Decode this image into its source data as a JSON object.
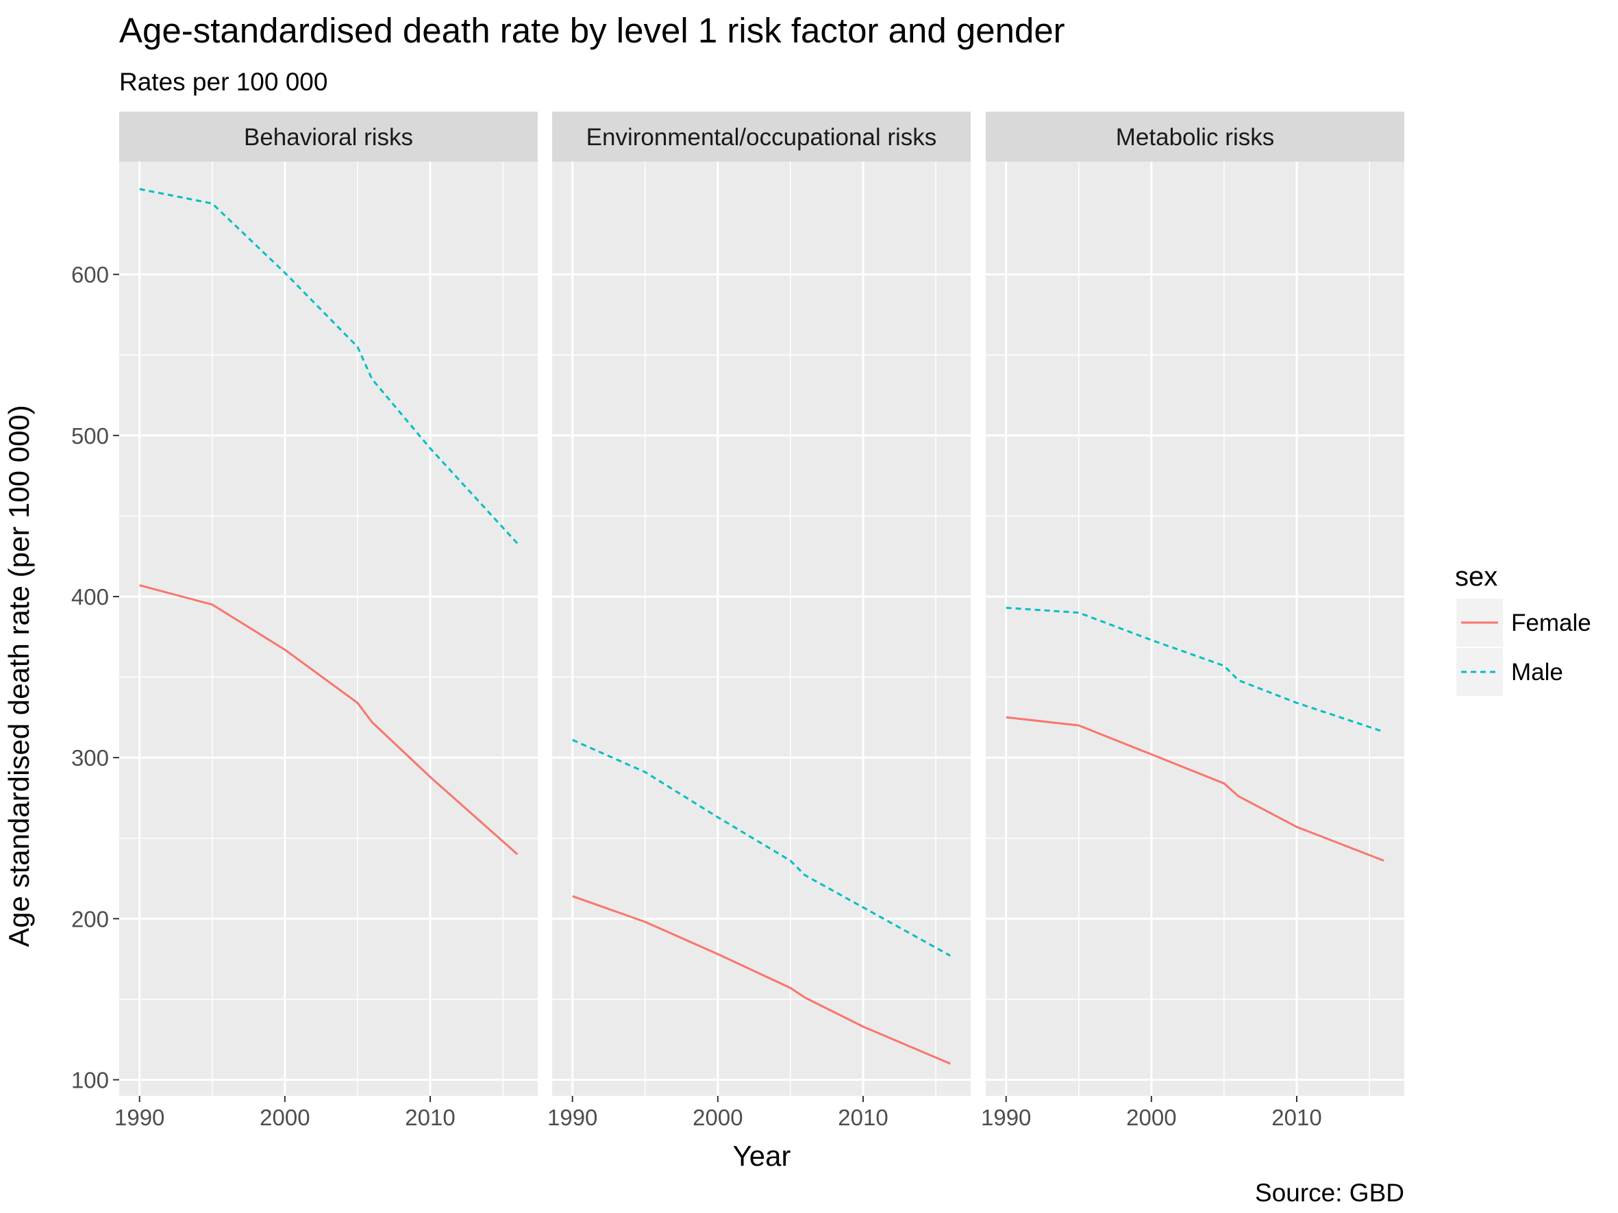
{
  "chart_data": {
    "type": "line",
    "title": "Age-standardised death rate by level 1 risk factor and gender",
    "subtitle": "Rates per 100 000",
    "xlabel": "Year",
    "ylabel": "Age standardised death rate (per 100 000)",
    "caption": "Source: GBD",
    "xlim": [
      1988.6,
      2017.4
    ],
    "ylim": [
      90,
      670
    ],
    "x_ticks": [
      1990,
      2000,
      2010
    ],
    "y_ticks": [
      100,
      200,
      300,
      400,
      500,
      600
    ],
    "grid": true,
    "legend": {
      "title": "sex",
      "position": "right",
      "entries": [
        {
          "label": "Female",
          "color": "#F8766D",
          "dash": "solid"
        },
        {
          "label": "Male",
          "color": "#00BFC4",
          "dash": "dashed"
        }
      ]
    },
    "x": [
      1990,
      1995,
      2000,
      2005,
      2006,
      2010,
      2016
    ],
    "panels": [
      {
        "name": "Behavioral risks",
        "series": [
          {
            "name": "Female",
            "values": [
              407,
              395,
              367,
              334,
              322,
              288,
              240
            ]
          },
          {
            "name": "Male",
            "values": [
              653,
              644,
              601,
              555,
              535,
              492,
              433
            ]
          }
        ]
      },
      {
        "name": "Environmental/occupational risks",
        "series": [
          {
            "name": "Female",
            "values": [
              214,
              198,
              178,
              157,
              151,
              133,
              110
            ]
          },
          {
            "name": "Male",
            "values": [
              311,
              291,
              263,
              236,
              227,
              207,
              177
            ]
          }
        ]
      },
      {
        "name": "Metabolic risks",
        "series": [
          {
            "name": "Female",
            "values": [
              325,
              320,
              302,
              284,
              276,
              257,
              236
            ]
          },
          {
            "name": "Male",
            "values": [
              393,
              390,
              373,
              357,
              348,
              334,
              316
            ]
          }
        ]
      }
    ]
  }
}
